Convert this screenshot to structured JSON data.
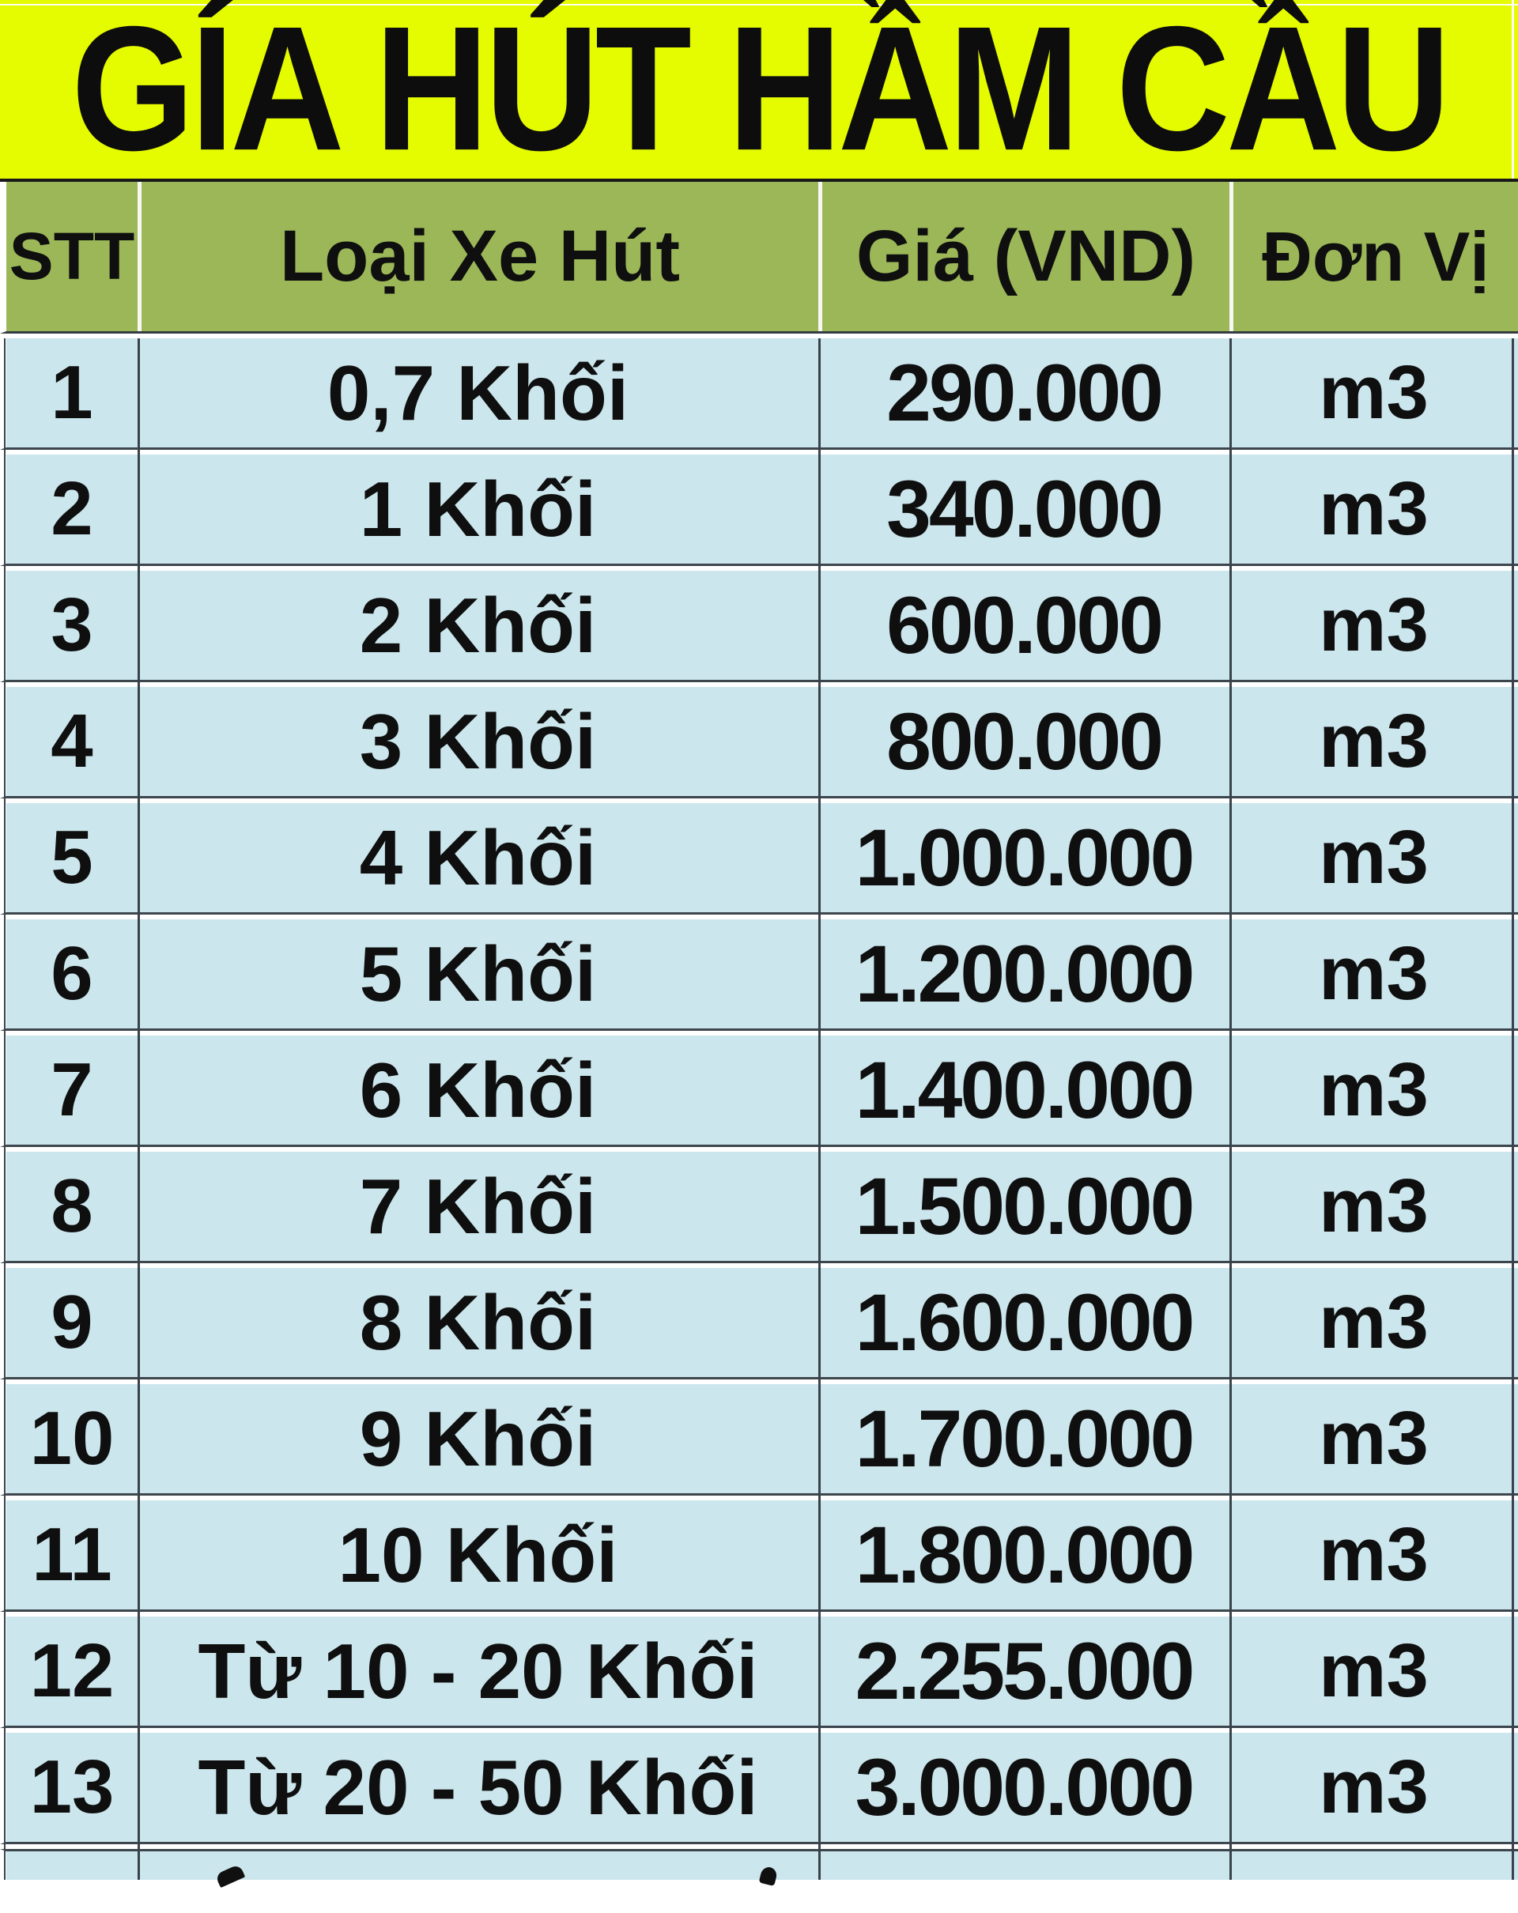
{
  "title": "GÍA HÚT HẦM CẦU",
  "table": {
    "columns": [
      "STT",
      "Loại Xe Hút",
      "Giá (VND)",
      "Đơn Vị"
    ],
    "rows": [
      {
        "stt": "1",
        "type": "0,7 Khối",
        "price": "290.000",
        "unit": "m3"
      },
      {
        "stt": "2",
        "type": "1 Khối",
        "price": "340.000",
        "unit": "m3"
      },
      {
        "stt": "3",
        "type": "2 Khối",
        "price": "600.000",
        "unit": "m3"
      },
      {
        "stt": "4",
        "type": "3 Khối",
        "price": "800.000",
        "unit": "m3"
      },
      {
        "stt": "5",
        "type": "4 Khối",
        "price": "1.000.000",
        "unit": "m3"
      },
      {
        "stt": "6",
        "type": "5 Khối",
        "price": "1.200.000",
        "unit": "m3"
      },
      {
        "stt": "7",
        "type": "6 Khối",
        "price": "1.400.000",
        "unit": "m3"
      },
      {
        "stt": "8",
        "type": "7 Khối",
        "price": "1.500.000",
        "unit": "m3"
      },
      {
        "stt": "9",
        "type": "8 Khối",
        "price": "1.600.000",
        "unit": "m3"
      },
      {
        "stt": "10",
        "type": "9 Khối",
        "price": "1.700.000",
        "unit": "m3"
      },
      {
        "stt": "11",
        "type": "10 Khối",
        "price": "1.800.000",
        "unit": "m3"
      },
      {
        "stt": "12",
        "type": "Từ 10 - 20 Khối",
        "price": "2.255.000",
        "unit": "m3"
      },
      {
        "stt": "13",
        "type": "Từ 20 - 50 Khối",
        "price": "3.000.000",
        "unit": "m3"
      }
    ],
    "partial_row": {
      "stt": "",
      "type": "",
      "price": "",
      "unit": ""
    }
  },
  "colors": {
    "title_background": "#E5FB00",
    "header_background": "#9BB757",
    "row_background": "#CBE6EC",
    "grid_line": "#39424A",
    "text": "#0F0F0F"
  }
}
